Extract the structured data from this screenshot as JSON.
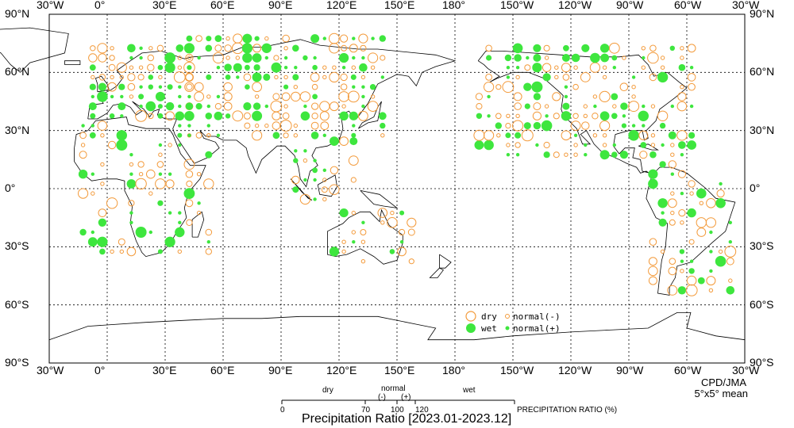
{
  "credit": {
    "line1": "CPD/JMA",
    "line2": "5°x5° mean"
  },
  "title": "Precipitation Ratio [2023.01-2023.12]",
  "colors": {
    "dry": "#f39a3a",
    "wet": "#3ee63e",
    "grid": "#000000",
    "coast": "#000000"
  },
  "lon_top": [
    "30°W",
    "0°",
    "30°E",
    "60°E",
    "90°E",
    "120°E",
    "150°E",
    "180°",
    "150°W",
    "120°W",
    "90°W",
    "60°W",
    "30°W"
  ],
  "lon_bottom": [
    "30°W",
    "0°",
    "30°E",
    "60°E",
    "90°E",
    "120°E",
    "150°E",
    "180°",
    "150°W",
    "120°W",
    "90°W",
    "60°W",
    "30°W"
  ],
  "lat_left": [
    "90°N",
    "60°N",
    "30°N",
    "0°",
    "30°S",
    "60°S",
    "90°S"
  ],
  "lat_right": [
    "90°N",
    "60°N",
    "30°N",
    "0°",
    "30°S",
    "60°S",
    "90°S"
  ],
  "legend": {
    "dry": "dry",
    "wet": "wet",
    "normal_minus": "normal(-)",
    "normal_plus": "normal(+)"
  },
  "scale": {
    "dry": "dry",
    "normal": "normal",
    "wet": "wet",
    "minus": "(-)",
    "plus": "(+)",
    "ticks": [
      "0",
      "70",
      "100",
      "120"
    ],
    "unit_label": "PRECIPITATION RATIO (%)"
  }
}
